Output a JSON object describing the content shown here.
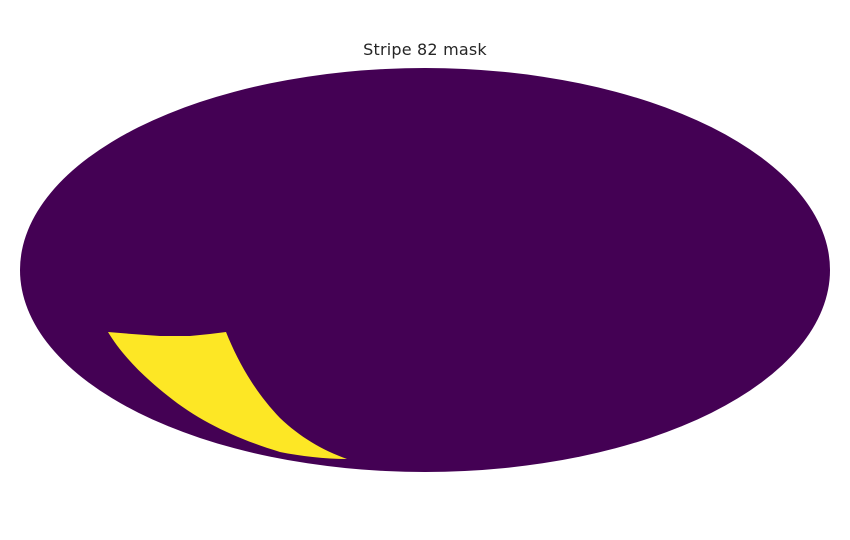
{
  "figure": {
    "title": "Stripe 82 mask",
    "projection": "mollweide",
    "colormap": "viridis",
    "colors": {
      "masked": "#440154",
      "footprint": "#fde725",
      "background": "#ffffff",
      "title_text": "#262626"
    },
    "regions": [
      {
        "name": "masked-sky",
        "value": 0
      },
      {
        "name": "stripe-82-footprint",
        "value": 1
      }
    ]
  }
}
